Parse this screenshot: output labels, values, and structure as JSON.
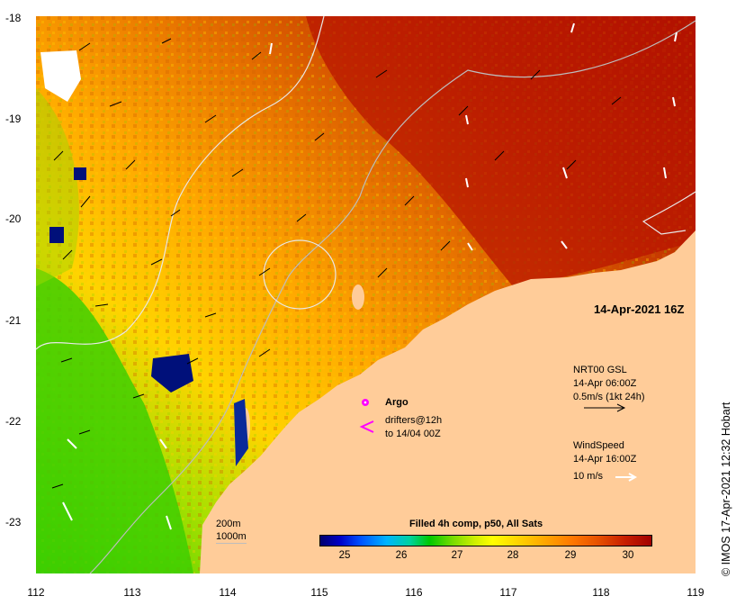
{
  "map": {
    "x_ticks": [
      "112",
      "113",
      "114",
      "115",
      "116",
      "117",
      "118",
      "119"
    ],
    "y_ticks": [
      "-18",
      "-19",
      "-20",
      "-21",
      "-22",
      "-23"
    ],
    "colors": {
      "ocean_cool": "#00c800",
      "ocean_mid": "#ffd200",
      "ocean_warm": "#e06000",
      "ocean_hot": "#a01000",
      "land": "#ffcc99",
      "cloud_white": "#ffffff",
      "contour": "#dcdcdc"
    }
  },
  "timestamp": "14-Apr-2021 16Z",
  "legend": {
    "argo": "Argo",
    "drifters_line1": "drifters@12h",
    "drifters_line2": "to 14/04 00Z",
    "current_title": "NRT00 GSL",
    "current_time": "14-Apr 06:00Z",
    "current_scale": "0.5m/s (1kt 24h)",
    "wind_title": "WindSpeed",
    "wind_time": "14-Apr 16:00Z",
    "wind_scale": "10 m/s",
    "depth_200": "200m",
    "depth_1000": "1000m"
  },
  "colorbar": {
    "title": "Filled 4h comp, p50, All Sats",
    "labels": [
      "25",
      "26",
      "27",
      "28",
      "29",
      "30"
    ]
  },
  "credit": "© IMOS 17-Apr-2021 12:32 Hobart"
}
